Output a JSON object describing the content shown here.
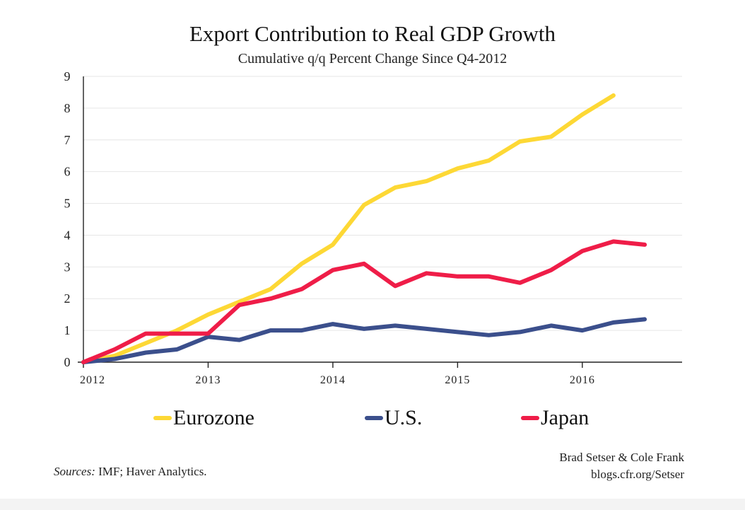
{
  "chart_data": {
    "type": "line",
    "title": "Export Contribution to Real GDP Growth",
    "subtitle": "Cumulative q/q Percent Change Since Q4-2012",
    "xlabel": "",
    "ylabel": "",
    "xlim": [
      2012,
      2016.8
    ],
    "ylim": [
      0,
      9
    ],
    "y_ticks": [
      0,
      1,
      2,
      3,
      4,
      5,
      6,
      7,
      8,
      9
    ],
    "x_ticks": [
      "2012",
      "2013",
      "2014",
      "2015",
      "2016"
    ],
    "grid": true,
    "legend_position": "bottom",
    "series": [
      {
        "name": "Eurozone",
        "color": "#FDD835",
        "x": [
          2012.0,
          2012.25,
          2012.5,
          2012.75,
          2013.0,
          2013.25,
          2013.5,
          2013.75,
          2014.0,
          2014.25,
          2014.5,
          2014.75,
          2015.0,
          2015.25,
          2015.5,
          2015.75,
          2016.0,
          2016.25
        ],
        "values": [
          0.0,
          0.2,
          0.6,
          1.0,
          1.5,
          1.9,
          2.3,
          3.1,
          3.7,
          4.95,
          5.5,
          5.7,
          6.1,
          6.35,
          6.95,
          7.1,
          7.8,
          8.4
        ]
      },
      {
        "name": "U.S.",
        "color": "#3B4F8C",
        "x": [
          2012.0,
          2012.25,
          2012.5,
          2012.75,
          2013.0,
          2013.25,
          2013.5,
          2013.75,
          2014.0,
          2014.25,
          2014.5,
          2014.75,
          2015.0,
          2015.25,
          2015.5,
          2015.75,
          2016.0,
          2016.25,
          2016.5
        ],
        "values": [
          0.0,
          0.1,
          0.3,
          0.4,
          0.8,
          0.7,
          1.0,
          1.0,
          1.2,
          1.05,
          1.15,
          1.05,
          0.95,
          0.85,
          0.95,
          1.15,
          1.0,
          1.25,
          1.35
        ]
      },
      {
        "name": "Japan",
        "color": "#EF1D48",
        "x": [
          2012.0,
          2012.25,
          2012.5,
          2012.75,
          2013.0,
          2013.25,
          2013.5,
          2013.75,
          2014.0,
          2014.25,
          2014.5,
          2014.75,
          2015.0,
          2015.25,
          2015.5,
          2015.75,
          2016.0,
          2016.25,
          2016.5
        ],
        "values": [
          0.0,
          0.4,
          0.9,
          0.9,
          0.9,
          1.8,
          2.0,
          2.3,
          2.9,
          3.1,
          2.4,
          2.8,
          2.7,
          2.7,
          2.5,
          2.9,
          3.5,
          3.8,
          3.7
        ]
      }
    ]
  },
  "legend": {
    "eurozone": "Eurozone",
    "us": "U.S.",
    "japan": "Japan"
  },
  "credit": {
    "authors": "Brad Setser & Cole Frank",
    "site": "blogs.cfr.org/Setser"
  },
  "sources": {
    "label": "Sources:",
    "text": " IMF; Haver Analytics."
  }
}
